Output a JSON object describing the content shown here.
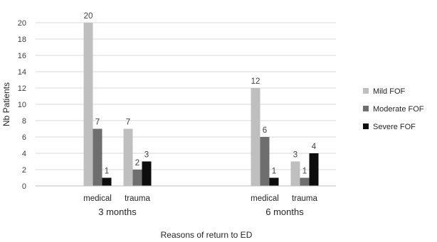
{
  "chart_data": {
    "type": "bar",
    "title": "",
    "xlabel": "Reasons of return to ED",
    "ylabel": "Nb Patients",
    "ylim": [
      0,
      20
    ],
    "yticks": [
      0,
      2,
      4,
      6,
      8,
      10,
      12,
      14,
      16,
      18,
      20
    ],
    "grid": true,
    "legend_position": "right",
    "groups": [
      {
        "label": "3 months",
        "categories": [
          "medical",
          "trauma"
        ]
      },
      {
        "label": "6 months",
        "categories": [
          "medical",
          "trauma"
        ]
      }
    ],
    "series": [
      {
        "name": "Mild FOF",
        "color": "#bfbfbf",
        "values": [
          [
            20,
            7
          ],
          [
            12,
            3
          ]
        ]
      },
      {
        "name": "Moderate FOF",
        "color": "#6e6e6e",
        "values": [
          [
            7,
            2
          ],
          [
            6,
            1
          ]
        ]
      },
      {
        "name": "Severe FOF",
        "color": "#0d0d0d",
        "values": [
          [
            1,
            3
          ],
          [
            1,
            4
          ]
        ]
      }
    ]
  }
}
